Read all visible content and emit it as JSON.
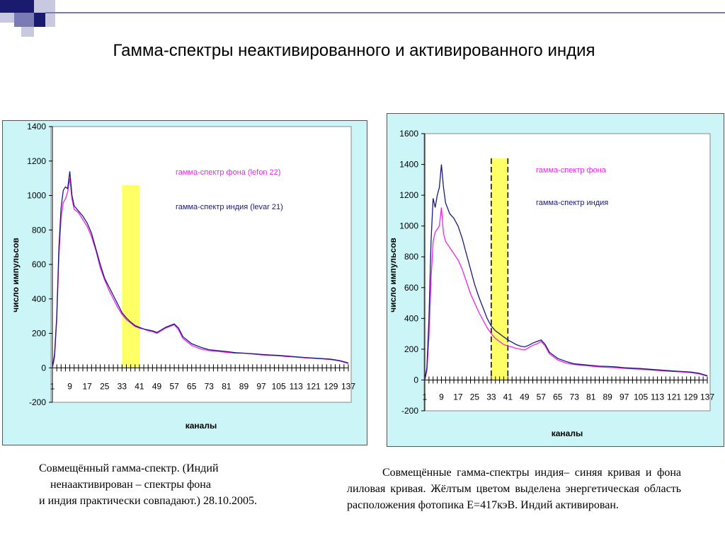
{
  "slide": {
    "title": "Гамма-спектры неактивированного и активированного индия",
    "caption_left": [
      "Совмещённый гамма-спектр. (Индий",
      "ненаактивирован – спектры фона",
      "и индия практически совпадают.) 28.10.2005."
    ],
    "caption_right": "Совмещённые гамма-спектры индия– синяя кривая и фона   лиловая кривая. Жёлтым цветом выделена энергетическая область  расположения фотопика Е=417кэВ. Индий активирован."
  },
  "colors": {
    "panel_bg": "#ccf5f7",
    "plot_bg": "#ffffff",
    "indium": "#1a1a7a",
    "background": "#ee22ee",
    "highlight": "#ffff66",
    "deco_squares": [
      "#1a1a6e",
      "#7a7ab4",
      "#c8c8e0"
    ]
  },
  "chart_data": [
    {
      "type": "line",
      "xlabel": "каналы",
      "ylabel": "число импульсов",
      "ylim": [
        -200,
        1400
      ],
      "yticks": [
        -200,
        0,
        200,
        400,
        600,
        800,
        1000,
        1200,
        1400
      ],
      "xlim": [
        1,
        137
      ],
      "xticks": [
        1,
        9,
        17,
        25,
        33,
        41,
        49,
        57,
        65,
        73,
        81,
        89,
        97,
        105,
        113,
        121,
        129,
        137
      ],
      "highlight_channels": [
        33,
        41
      ],
      "grid": false,
      "legend_position": "top-right",
      "series": [
        {
          "name": "гамма-спектр фона (lefon 22)",
          "color": "#ee22ee",
          "x": [
            1,
            2,
            3,
            4,
            5,
            6,
            7,
            8,
            9,
            10,
            11,
            13,
            15,
            17,
            19,
            21,
            23,
            25,
            27,
            29,
            31,
            33,
            35,
            37,
            39,
            41,
            43,
            45,
            47,
            49,
            51,
            53,
            55,
            57,
            59,
            61,
            65,
            69,
            73,
            77,
            81,
            85,
            89,
            93,
            97,
            101,
            105,
            109,
            113,
            117,
            121,
            125,
            129,
            133,
            137
          ],
          "values": [
            0,
            60,
            280,
            650,
            870,
            960,
            980,
            1020,
            1100,
            980,
            920,
            900,
            860,
            820,
            760,
            680,
            580,
            510,
            450,
            400,
            350,
            310,
            280,
            260,
            240,
            230,
            225,
            215,
            210,
            200,
            215,
            230,
            240,
            250,
            220,
            170,
            130,
            110,
            100,
            95,
            90,
            85,
            85,
            80,
            75,
            72,
            70,
            65,
            62,
            58,
            55,
            52,
            48,
            40,
            25
          ]
        },
        {
          "name": "гамма-спектр индия (levar 21)",
          "color": "#1a1a7a",
          "x": [
            1,
            2,
            3,
            4,
            5,
            6,
            7,
            8,
            9,
            10,
            11,
            13,
            15,
            17,
            19,
            21,
            23,
            25,
            27,
            29,
            31,
            33,
            35,
            37,
            39,
            41,
            43,
            45,
            47,
            49,
            51,
            53,
            55,
            57,
            59,
            61,
            65,
            69,
            73,
            77,
            81,
            85,
            89,
            93,
            97,
            101,
            105,
            109,
            113,
            117,
            121,
            125,
            129,
            133,
            137
          ],
          "values": [
            0,
            80,
            300,
            700,
            930,
            1030,
            1050,
            1040,
            1140,
            1000,
            940,
            910,
            880,
            840,
            780,
            690,
            600,
            520,
            470,
            420,
            370,
            320,
            290,
            265,
            245,
            235,
            225,
            220,
            215,
            205,
            220,
            235,
            245,
            255,
            230,
            180,
            140,
            120,
            105,
            100,
            95,
            88,
            85,
            82,
            78,
            75,
            72,
            68,
            64,
            60,
            57,
            54,
            50,
            42,
            28
          ]
        }
      ]
    },
    {
      "type": "line",
      "xlabel": "каналы",
      "ylabel": "число импульсов",
      "ylim": [
        -200,
        1600
      ],
      "yticks": [
        -200,
        0,
        200,
        400,
        600,
        800,
        1000,
        1200,
        1400,
        1600
      ],
      "xlim": [
        1,
        137
      ],
      "xticks": [
        1,
        9,
        17,
        25,
        33,
        41,
        49,
        57,
        65,
        73,
        81,
        89,
        97,
        105,
        113,
        121,
        129,
        137
      ],
      "highlight_channels": [
        33,
        41
      ],
      "grid": false,
      "legend_position": "top-right",
      "series": [
        {
          "name": "гамма-спектр фона",
          "color": "#ee22ee",
          "x": [
            1,
            2,
            3,
            4,
            5,
            6,
            7,
            8,
            9,
            10,
            11,
            13,
            15,
            17,
            19,
            21,
            23,
            25,
            27,
            29,
            31,
            33,
            35,
            37,
            39,
            41,
            43,
            45,
            47,
            49,
            51,
            53,
            55,
            57,
            59,
            61,
            65,
            69,
            73,
            77,
            81,
            85,
            89,
            93,
            97,
            101,
            105,
            109,
            113,
            117,
            121,
            125,
            129,
            133,
            137
          ],
          "values": [
            0,
            60,
            280,
            650,
            900,
            960,
            980,
            1000,
            1120,
            950,
            900,
            860,
            820,
            780,
            720,
            640,
            560,
            500,
            440,
            390,
            340,
            300,
            270,
            250,
            230,
            220,
            215,
            205,
            200,
            195,
            210,
            225,
            235,
            250,
            220,
            170,
            130,
            110,
            100,
            95,
            90,
            85,
            82,
            80,
            75,
            72,
            70,
            65,
            62,
            58,
            55,
            52,
            48,
            40,
            25
          ]
        },
        {
          "name": "гамма-спектр индия",
          "color": "#1a1a7a",
          "x": [
            1,
            2,
            3,
            4,
            5,
            6,
            7,
            8,
            9,
            10,
            11,
            13,
            15,
            17,
            19,
            21,
            23,
            25,
            27,
            29,
            31,
            33,
            35,
            37,
            39,
            41,
            43,
            45,
            47,
            49,
            51,
            53,
            55,
            57,
            59,
            61,
            65,
            69,
            73,
            77,
            81,
            85,
            89,
            93,
            97,
            101,
            105,
            109,
            113,
            117,
            121,
            125,
            129,
            133,
            137
          ],
          "values": [
            0,
            80,
            400,
            900,
            1180,
            1120,
            1200,
            1250,
            1400,
            1250,
            1150,
            1080,
            1050,
            1000,
            920,
            820,
            720,
            620,
            540,
            470,
            400,
            350,
            320,
            300,
            280,
            260,
            245,
            230,
            220,
            215,
            225,
            240,
            250,
            260,
            230,
            180,
            140,
            120,
            105,
            100,
            95,
            90,
            88,
            85,
            80,
            77,
            74,
            70,
            66,
            62,
            58,
            55,
            52,
            44,
            28
          ]
        }
      ]
    }
  ]
}
